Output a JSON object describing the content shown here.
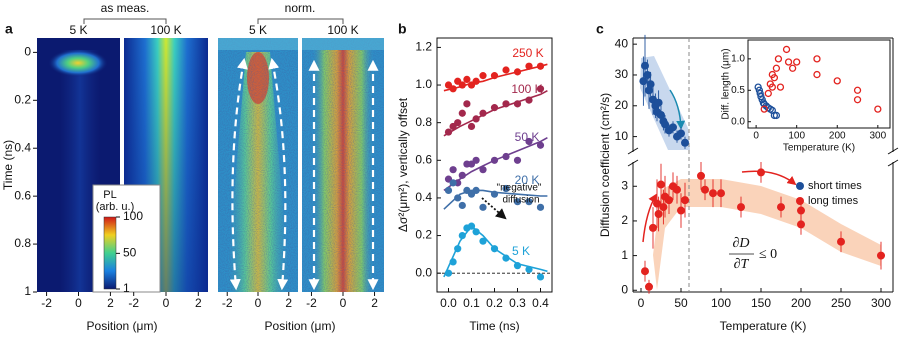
{
  "chart_data": [
    {
      "type": "heatmap",
      "panel_label": "a",
      "y_label": "Time (ns)",
      "x_label": "Position (μm)",
      "ylim": [
        -0.06,
        1
      ],
      "yticks": [
        0,
        0.2,
        0.4,
        0.6,
        0.8,
        1
      ],
      "xlim": [
        -2.6,
        2.6
      ],
      "xticks": [
        -2,
        0,
        2
      ],
      "groups": [
        "as meas.",
        "norm."
      ],
      "panels": [
        {
          "title": "5 K"
        },
        {
          "title": "100 K"
        },
        {
          "title": "5 K"
        },
        {
          "title": "100 K"
        }
      ],
      "colorbar": {
        "title_lines": [
          "PL",
          "(arb. u.)"
        ],
        "lim": [
          1,
          100
        ],
        "ticks": [
          1,
          50,
          100
        ]
      }
    },
    {
      "type": "scatter",
      "panel_label": "b",
      "y_label": "Δσ²(μm²), vertically offset",
      "x_label": "Time (ns)",
      "xlim": [
        -0.05,
        0.45
      ],
      "xticks": [
        {
          "value": 0,
          "label": "0.0"
        },
        0.1,
        0.2,
        0.3,
        0.4
      ],
      "ylim": [
        -0.1,
        1.25
      ],
      "yticks": [
        {
          "value": 0,
          "label": "0.0"
        },
        0.2,
        0.4,
        0.6,
        0.8,
        {
          "value": 1,
          "label": "1.0"
        },
        1.2
      ],
      "reference_line": 0,
      "x": [
        0.0,
        0.02,
        0.04,
        0.06,
        0.08,
        0.1,
        0.12,
        0.15,
        0.2,
        0.25,
        0.3,
        0.35,
        0.4
      ],
      "fit_x": [
        -0.02,
        0.05,
        0.1,
        0.15,
        0.2,
        0.3,
        0.4,
        0.43
      ],
      "series": [
        {
          "name": "250 K",
          "color": "#e3231f",
          "values": [
            1.0,
            0.98,
            1.02,
            1.0,
            1.03,
            1.0,
            1.02,
            1.05,
            1.05,
            1.08,
            1.07,
            1.1,
            1.1
          ],
          "fit": [
            0.97,
            0.99,
            1.01,
            1.02,
            1.04,
            1.07,
            1.1,
            1.11
          ]
        },
        {
          "name": "100 K",
          "color": "#a3284c",
          "values": [
            0.75,
            0.78,
            0.8,
            0.85,
            0.9,
            0.78,
            0.82,
            0.85,
            0.88,
            0.9,
            0.9,
            0.92,
            0.98
          ],
          "fit": [
            0.73,
            0.78,
            0.81,
            0.84,
            0.87,
            0.91,
            0.95,
            0.97
          ]
        },
        {
          "name": "50 K",
          "color": "#6e3f8f",
          "values": [
            0.5,
            0.55,
            0.48,
            0.52,
            0.58,
            0.58,
            0.6,
            0.55,
            0.6,
            0.62,
            0.6,
            0.7,
            0.68
          ],
          "fit": [
            0.44,
            0.5,
            0.54,
            0.57,
            0.6,
            0.65,
            0.7,
            0.72
          ]
        },
        {
          "name": "20 K",
          "color": "#3f6fa8",
          "values": [
            0.44,
            0.48,
            0.4,
            0.36,
            0.44,
            0.42,
            0.44,
            0.35,
            0.42,
            0.45,
            0.38,
            0.38,
            0.35
          ],
          "fit": [
            0.34,
            0.42,
            0.44,
            0.44,
            0.43,
            0.42,
            0.41,
            0.41
          ]
        },
        {
          "name": "5 K",
          "color": "#1ea2d8",
          "values": [
            0.0,
            0.06,
            0.13,
            0.2,
            0.24,
            0.25,
            0.22,
            0.17,
            0.13,
            0.08,
            0.04,
            0.02,
            -0.02
          ],
          "fit": [
            -0.02,
            0.17,
            0.25,
            0.2,
            0.13,
            0.05,
            0.02,
            0.01
          ]
        }
      ],
      "annotation_lines": [
        "\"negative\"",
        "diffusion"
      ]
    },
    {
      "type": "scatter",
      "panel_label": "c",
      "y_label": "Diffusion coefficient (cm²/s)",
      "x_label": "Temperature (K)",
      "xlim": [
        -10,
        315
      ],
      "xticks": [
        0,
        50,
        100,
        150,
        200,
        250,
        300
      ],
      "ylim_upper": [
        5,
        42
      ],
      "yticks_upper": [
        10,
        20,
        30,
        40
      ],
      "ylim_lower": [
        -0.05,
        3.7
      ],
      "yticks_lower": [
        0,
        1,
        2,
        3
      ],
      "divider_x": 60,
      "legend": "upper right",
      "formula": {
        "numerator": "∂D",
        "denominator": "∂T",
        "relation": "≤ 0"
      },
      "series": [
        {
          "name": "short times",
          "color": "#1d4f9a",
          "axis": "upper",
          "x": [
            3,
            5,
            8,
            10,
            12,
            15,
            18,
            20,
            22,
            25,
            28,
            30,
            35,
            40,
            45,
            50,
            55
          ],
          "values": [
            28,
            33,
            30,
            25,
            27,
            22,
            20,
            18,
            21,
            17,
            15,
            14,
            12,
            13,
            10,
            11,
            8
          ],
          "errors": [
            8,
            10,
            5,
            6,
            4,
            5,
            4,
            3,
            4,
            3,
            3,
            3,
            2,
            2,
            2,
            2,
            2
          ]
        },
        {
          "name": "long times",
          "color": "#e3231f",
          "axis": "lower",
          "x": [
            5,
            10,
            15,
            20,
            22,
            25,
            28,
            30,
            35,
            40,
            45,
            50,
            55,
            75,
            80,
            90,
            100,
            125,
            150,
            175,
            200,
            200,
            250,
            300
          ],
          "values": [
            0.55,
            0.1,
            1.8,
            2.5,
            2.2,
            3.05,
            2.4,
            2.7,
            2.6,
            3.0,
            2.9,
            2.3,
            2.6,
            3.3,
            2.9,
            2.8,
            2.8,
            2.4,
            3.4,
            2.4,
            2.3,
            1.9,
            1.4,
            1.0
          ],
          "errors": [
            0.3,
            0.2,
            0.6,
            0.7,
            0.5,
            0.6,
            0.5,
            0.6,
            0.4,
            0.4,
            0.4,
            0.5,
            0.5,
            0.4,
            0.3,
            0.4,
            0.4,
            0.3,
            0.3,
            0.3,
            0.3,
            0.3,
            0.3,
            0.4
          ]
        }
      ],
      "inset": {
        "y_label": "Diff. length (μm)",
        "x_label": "Temperature (K)",
        "xlim": [
          -20,
          330
        ],
        "xticks": [
          0,
          100,
          200,
          300
        ],
        "ylim": [
          -0.1,
          1.3
        ],
        "yticks": [
          {
            "value": 0,
            "label": "0.0"
          },
          0.5,
          {
            "value": 1,
            "label": "1.0"
          }
        ],
        "series": [
          {
            "color": "#1d4f9a",
            "x": [
              5,
              8,
              10,
              12,
              15,
              18,
              20,
              25,
              30,
              35,
              40,
              45,
              50
            ],
            "values": [
              0.55,
              0.5,
              0.45,
              0.4,
              0.35,
              0.3,
              0.28,
              0.25,
              0.22,
              0.2,
              0.18,
              0.1,
              0.1
            ]
          },
          {
            "color": "#e3231f",
            "x": [
              20,
              30,
              35,
              40,
              40,
              45,
              50,
              55,
              60,
              75,
              80,
              90,
              100,
              150,
              150,
              200,
              250,
              250,
              300
            ],
            "values": [
              0.2,
              0.45,
              0.6,
              0.55,
              0.75,
              0.7,
              0.85,
              1.0,
              0.55,
              1.15,
              0.95,
              0.85,
              0.95,
              1.0,
              0.75,
              0.65,
              0.5,
              0.35,
              0.2
            ]
          }
        ]
      }
    }
  ]
}
